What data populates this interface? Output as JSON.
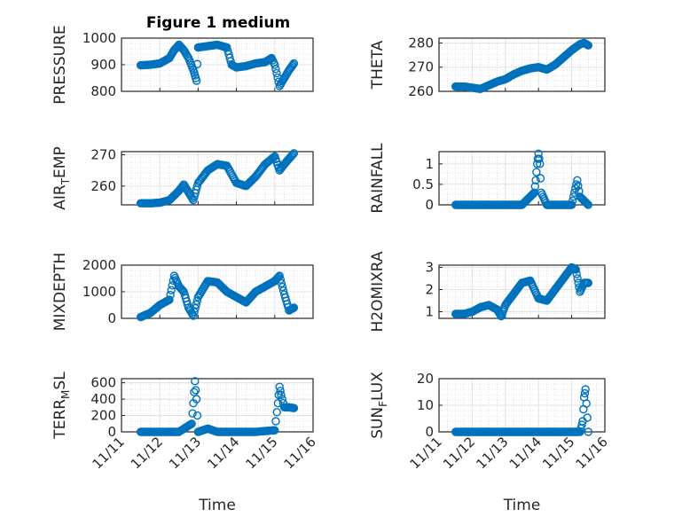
{
  "figure": {
    "title": "Figure 1 medium"
  },
  "chart_data": [
    {
      "type": "scatter",
      "ylabel": "PRESSURE",
      "xlabel": "",
      "ylim": [
        800,
        1000
      ],
      "yticks": [
        "800",
        "900",
        "1000"
      ],
      "grid": true,
      "x": [
        "11/11 12:00",
        "11/11 18:00",
        "11/12 00:00",
        "11/12 06:00",
        "11/12 09:00",
        "11/12 12:00",
        "11/12 15:00",
        "11/12 18:00",
        "11/12 21:00",
        "11/12 22:00",
        "11/12 23:00",
        "11/13 00:00",
        "11/13 06:00",
        "11/13 12:00",
        "11/13 18:00",
        "11/13 21:00",
        "11/14 00:00",
        "11/14 06:00",
        "11/14 12:00",
        "11/14 18:00",
        "11/14 22:00",
        "11/15 00:00",
        "11/15 03:00",
        "11/15 06:00",
        "11/15 09:00",
        "11/15 12:00"
      ],
      "y": [
        898,
        900,
        905,
        925,
        955,
        975,
        955,
        925,
        880,
        860,
        840,
        965,
        970,
        975,
        965,
        900,
        890,
        895,
        905,
        910,
        925,
        900,
        820,
        850,
        880,
        905
      ]
    },
    {
      "type": "scatter",
      "ylabel": "THETA",
      "xlabel": "",
      "ylim": [
        260,
        282
      ],
      "yticks": [
        "260",
        "270",
        "280"
      ],
      "grid": true,
      "x": [
        "11/11 12:00",
        "11/11 18:00",
        "11/12 00:00",
        "11/12 06:00",
        "11/12 12:00",
        "11/12 18:00",
        "11/13 00:00",
        "11/13 06:00",
        "11/13 12:00",
        "11/13 18:00",
        "11/14 00:00",
        "11/14 06:00",
        "11/14 12:00",
        "11/14 18:00",
        "11/15 00:00",
        "11/15 06:00",
        "11/15 09:00",
        "11/15 12:00"
      ],
      "y": [
        262,
        262,
        261.5,
        261,
        262.5,
        264,
        265,
        267,
        268.5,
        269.5,
        270,
        269,
        271,
        274,
        277,
        279.5,
        280,
        279
      ]
    },
    {
      "type": "scatter",
      "ylabel": "AIR_TEMP",
      "xlabel": "",
      "ylim": [
        254,
        271
      ],
      "yticks": [
        "260",
        "270"
      ],
      "grid": true,
      "x": [
        "11/11 12:00",
        "11/11 18:00",
        "11/12 00:00",
        "11/12 06:00",
        "11/12 12:00",
        "11/12 15:00",
        "11/12 18:00",
        "11/12 21:00",
        "11/13 00:00",
        "11/13 06:00",
        "11/13 12:00",
        "11/13 18:00",
        "11/14 00:00",
        "11/14 06:00",
        "11/14 12:00",
        "11/14 18:00",
        "11/15 00:00",
        "11/15 03:00",
        "11/15 06:00",
        "11/15 12:00"
      ],
      "y": [
        254.5,
        254.5,
        254.7,
        255.5,
        258.5,
        260.5,
        258,
        255.5,
        261,
        265,
        267,
        266.5,
        261,
        260,
        263,
        267,
        269.5,
        265,
        267,
        270.5
      ]
    },
    {
      "type": "scatter",
      "ylabel": "RAINFALL",
      "xlabel": "",
      "ylim": [
        0,
        1.3
      ],
      "yticks": [
        "0",
        "0.5",
        "1"
      ],
      "grid": true,
      "x": [
        "11/11 12:00",
        "11/12 00:00",
        "11/12 12:00",
        "11/13 00:00",
        "11/13 12:00",
        "11/13 21:00",
        "11/13 22:00",
        "11/13 23:00",
        "11/14 00:00",
        "11/14 01:00",
        "11/14 02:00",
        "11/14 06:00",
        "11/14 12:00",
        "11/14 18:00",
        "11/15 00:00",
        "11/15 02:00",
        "11/15 04:00",
        "11/15 06:00",
        "11/15 12:00"
      ],
      "y": [
        0,
        0,
        0,
        0,
        0,
        0.3,
        0.6,
        1.0,
        1.25,
        1.0,
        0.3,
        0,
        0,
        0,
        0,
        0.3,
        0.6,
        0.2,
        0
      ]
    },
    {
      "type": "scatter",
      "ylabel": "MIXDEPTH",
      "xlabel": "",
      "ylim": [
        0,
        2000
      ],
      "yticks": [
        "0",
        "1000",
        "2000"
      ],
      "grid": true,
      "x": [
        "11/11 12:00",
        "11/11 18:00",
        "11/12 00:00",
        "11/12 06:00",
        "11/12 09:00",
        "11/12 12:00",
        "11/12 15:00",
        "11/12 18:00",
        "11/12 21:00",
        "11/13 00:00",
        "11/13 06:00",
        "11/13 12:00",
        "11/13 18:00",
        "11/14 00:00",
        "11/14 06:00",
        "11/14 12:00",
        "11/14 18:00",
        "11/15 00:00",
        "11/15 03:00",
        "11/15 06:00",
        "11/15 09:00",
        "11/15 12:00"
      ],
      "y": [
        50,
        200,
        500,
        700,
        1600,
        1200,
        1000,
        400,
        100,
        800,
        1400,
        1350,
        1000,
        800,
        600,
        1000,
        1200,
        1400,
        1600,
        900,
        300,
        400
      ]
    },
    {
      "type": "scatter",
      "ylabel": "H2OMIXRA",
      "xlabel": "",
      "ylim": [
        0.7,
        3.1
      ],
      "yticks": [
        "1",
        "2",
        "3"
      ],
      "grid": true,
      "x": [
        "11/11 12:00",
        "11/11 18:00",
        "11/12 00:00",
        "11/12 06:00",
        "11/12 12:00",
        "11/12 18:00",
        "11/12 21:00",
        "11/13 00:00",
        "11/13 06:00",
        "11/13 12:00",
        "11/13 18:00",
        "11/14 00:00",
        "11/14 06:00",
        "11/14 12:00",
        "11/14 18:00",
        "11/15 00:00",
        "11/15 03:00",
        "11/15 06:00",
        "11/15 09:00",
        "11/15 12:00"
      ],
      "y": [
        0.9,
        0.9,
        1.0,
        1.2,
        1.3,
        1.1,
        0.8,
        1.3,
        1.8,
        2.3,
        2.4,
        1.6,
        1.5,
        2.0,
        2.5,
        3.0,
        2.9,
        1.9,
        2.3,
        2.3
      ]
    },
    {
      "type": "scatter",
      "ylabel": "TERR_MSL",
      "xlabel": "Time",
      "ylim": [
        0,
        650
      ],
      "yticks": [
        "0",
        "200",
        "400",
        "600"
      ],
      "grid": true,
      "xticks": [
        "11/11",
        "11/12",
        "11/13",
        "11/14",
        "11/15",
        "11/16"
      ],
      "x": [
        "11/11 12:00",
        "11/12 00:00",
        "11/12 12:00",
        "11/12 20:00",
        "11/12 21:00",
        "11/12 22:00",
        "11/12 23:00",
        "11/13 00:00",
        "11/13 06:00",
        "11/13 12:00",
        "11/14 00:00",
        "11/14 12:00",
        "11/15 00:00",
        "11/15 02:00",
        "11/15 03:00",
        "11/15 04:00",
        "11/15 06:00",
        "11/15 09:00",
        "11/15 12:00"
      ],
      "y": [
        0,
        0,
        0,
        100,
        350,
        620,
        400,
        0,
        40,
        0,
        0,
        0,
        20,
        350,
        550,
        450,
        300,
        300,
        290
      ]
    },
    {
      "type": "scatter",
      "ylabel": "SUN_FLUX",
      "xlabel": "Time",
      "ylim": [
        0,
        20
      ],
      "yticks": [
        "0",
        "10",
        "20"
      ],
      "grid": true,
      "xticks": [
        "11/11",
        "11/12",
        "11/13",
        "11/14",
        "11/15",
        "11/16"
      ],
      "x": [
        "11/11 12:00",
        "11/12 00:00",
        "11/12 12:00",
        "11/13 00:00",
        "11/13 12:00",
        "11/14 00:00",
        "11/14 12:00",
        "11/15 00:00",
        "11/15 06:00",
        "11/15 08:00",
        "11/15 09:00",
        "11/15 10:00",
        "11/15 12:00"
      ],
      "y": [
        0,
        0,
        0,
        0,
        0,
        0,
        0,
        0,
        0,
        4,
        13,
        16,
        0
      ]
    }
  ]
}
